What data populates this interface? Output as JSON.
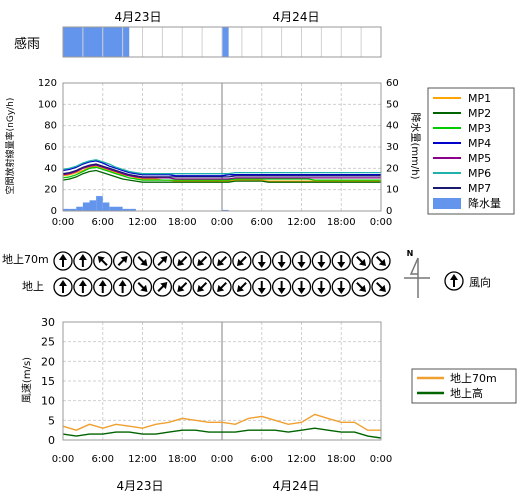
{
  "chart_data": [
    {
      "type": "timeline",
      "name_label": "感雨",
      "date_labels": [
        "4月23日",
        "4月24日"
      ],
      "rain_periods_hours": [
        [
          0,
          10
        ],
        [
          24,
          25
        ]
      ],
      "x_range_hours": [
        0,
        48
      ],
      "colors": {
        "rain": "#6495ed"
      }
    },
    {
      "type": "line",
      "ylabel_left": "空間放射線量率(nGy/h)",
      "ylabel_right": "降水量(mm/h)",
      "ylim_left": [
        0,
        120
      ],
      "ylim_right": [
        0,
        60
      ],
      "yticks_left": [
        "0",
        "20",
        "40",
        "60",
        "80",
        "100",
        "120"
      ],
      "yticks_right": [
        "0",
        "10",
        "20",
        "30",
        "40",
        "50",
        "60"
      ],
      "xticks": [
        "0:00",
        "6:00",
        "12:00",
        "18:00",
        "0:00",
        "6:00",
        "12:00",
        "18:00",
        "0:00"
      ],
      "x_hours": [
        0,
        1,
        2,
        3,
        4,
        5,
        6,
        7,
        8,
        9,
        10,
        11,
        12,
        13,
        14,
        15,
        16,
        17,
        18,
        19,
        20,
        21,
        22,
        23,
        24,
        25,
        26,
        27,
        28,
        29,
        30,
        31,
        32,
        33,
        34,
        35,
        36,
        37,
        38,
        39,
        40,
        41,
        42,
        43,
        44,
        45,
        46,
        47,
        48
      ],
      "series": [
        {
          "name": "MP1",
          "color": "#ffa500",
          "values": [
            33,
            34,
            36,
            38,
            41,
            42,
            40,
            38,
            36,
            34,
            33,
            31,
            30,
            30,
            30,
            29,
            29,
            28,
            28,
            28,
            28,
            28,
            28,
            28,
            28,
            28,
            29,
            29,
            29,
            29,
            29,
            28,
            28,
            28,
            28,
            28,
            28,
            28,
            28,
            28,
            28,
            28,
            28,
            28,
            28,
            28,
            28,
            28,
            28
          ]
        },
        {
          "name": "MP2",
          "color": "#006400",
          "values": [
            29,
            30,
            32,
            35,
            37,
            38,
            36,
            34,
            32,
            30,
            29,
            28,
            27,
            27,
            27,
            27,
            27,
            27,
            27,
            27,
            27,
            27,
            27,
            27,
            27,
            27,
            28,
            28,
            28,
            28,
            28,
            27,
            27,
            27,
            27,
            27,
            27,
            27,
            27,
            27,
            27,
            27,
            27,
            27,
            27,
            27,
            27,
            27,
            27
          ]
        },
        {
          "name": "MP3",
          "color": "#00cc00",
          "values": [
            31,
            32,
            34,
            37,
            40,
            41,
            39,
            37,
            35,
            33,
            31,
            30,
            29,
            29,
            29,
            29,
            29,
            29,
            29,
            29,
            29,
            29,
            29,
            29,
            29,
            29,
            30,
            30,
            30,
            30,
            30,
            30,
            30,
            30,
            30,
            30,
            30,
            30,
            29,
            29,
            29,
            29,
            29,
            29,
            29,
            29,
            29,
            29,
            29
          ]
        },
        {
          "name": "MP4",
          "color": "#0000cd",
          "values": [
            38,
            39,
            41,
            44,
            46,
            47,
            45,
            42,
            40,
            38,
            36,
            35,
            34,
            34,
            34,
            34,
            34,
            33,
            33,
            33,
            33,
            33,
            33,
            33,
            33,
            34,
            34,
            34,
            34,
            34,
            34,
            34,
            34,
            34,
            34,
            34,
            34,
            34,
            34,
            34,
            34,
            34,
            34,
            34,
            34,
            34,
            34,
            34,
            34
          ]
        },
        {
          "name": "MP5",
          "color": "#8b008b",
          "values": [
            34,
            35,
            37,
            40,
            42,
            43,
            41,
            39,
            37,
            35,
            33,
            32,
            31,
            31,
            31,
            31,
            31,
            30,
            30,
            30,
            30,
            30,
            30,
            30,
            30,
            30,
            31,
            31,
            31,
            31,
            31,
            31,
            31,
            31,
            31,
            31,
            31,
            31,
            31,
            31,
            31,
            31,
            31,
            31,
            31,
            31,
            31,
            31,
            31
          ]
        },
        {
          "name": "MP6",
          "color": "#20b2aa",
          "values": [
            39,
            40,
            42,
            45,
            47,
            48,
            46,
            44,
            41,
            39,
            37,
            36,
            35,
            35,
            35,
            35,
            35,
            35,
            35,
            35,
            35,
            35,
            35,
            35,
            35,
            35,
            36,
            36,
            36,
            36,
            36,
            36,
            36,
            36,
            36,
            36,
            36,
            36,
            36,
            36,
            36,
            36,
            36,
            36,
            36,
            36,
            36,
            36,
            36
          ]
        },
        {
          "name": "MP7",
          "color": "#191970",
          "values": [
            35,
            36,
            38,
            41,
            43,
            44,
            42,
            40,
            38,
            36,
            34,
            33,
            32,
            32,
            32,
            32,
            32,
            32,
            32,
            32,
            32,
            32,
            32,
            32,
            32,
            32,
            33,
            33,
            33,
            33,
            33,
            33,
            33,
            33,
            33,
            33,
            33,
            33,
            33,
            33,
            33,
            33,
            33,
            33,
            33,
            33,
            33,
            33,
            33
          ]
        }
      ],
      "precip": {
        "name": "降水量",
        "color": "#6495ed",
        "x_hours": [
          0,
          1,
          2,
          3,
          4,
          5,
          6,
          7,
          8,
          9,
          10,
          24
        ],
        "values": [
          1,
          1,
          2,
          4,
          5,
          7,
          4,
          2,
          2,
          1,
          1,
          0.5
        ]
      }
    },
    {
      "type": "wind_direction",
      "row_labels": [
        "地上70m",
        "地上"
      ],
      "legend_label": "風向",
      "north_label": "N",
      "x_hours": [
        0,
        3,
        6,
        9,
        12,
        15,
        18,
        21,
        24,
        27,
        30,
        33,
        36,
        39,
        42,
        45,
        48
      ],
      "upper_arrow_deg": [
        270,
        270,
        225,
        315,
        45,
        315,
        135,
        135,
        135,
        135,
        90,
        90,
        90,
        90,
        90,
        45,
        45
      ],
      "lower_arrow_deg": [
        270,
        270,
        270,
        270,
        45,
        315,
        135,
        135,
        135,
        135,
        90,
        90,
        90,
        90,
        90,
        45,
        45
      ]
    },
    {
      "type": "line",
      "ylabel": "風速(m/s)",
      "ylim": [
        0,
        30
      ],
      "yticks": [
        "0",
        "5",
        "10",
        "15",
        "20",
        "25",
        "30"
      ],
      "xticks": [
        "0:00",
        "6:00",
        "12:00",
        "18:00",
        "0:00",
        "6:00",
        "12:00",
        "18:00",
        "0:00"
      ],
      "date_labels": [
        "4月23日",
        "4月24日"
      ],
      "x_hours": [
        0,
        2,
        4,
        6,
        8,
        10,
        12,
        14,
        16,
        18,
        20,
        22,
        24,
        26,
        28,
        30,
        32,
        34,
        36,
        38,
        40,
        42,
        44,
        46,
        48
      ],
      "series": [
        {
          "name": "地上70m",
          "color": "#f0a030",
          "values": [
            3.5,
            2.5,
            4.0,
            3.0,
            4.0,
            3.5,
            3.0,
            4.0,
            4.5,
            5.5,
            5.0,
            4.5,
            4.5,
            4.0,
            5.5,
            6.0,
            5.0,
            4.0,
            4.5,
            6.5,
            5.5,
            4.5,
            4.5,
            2.5,
            2.5
          ]
        },
        {
          "name": "地上高",
          "color": "#006400",
          "values": [
            1.5,
            1.0,
            1.5,
            1.5,
            2.0,
            2.0,
            1.5,
            1.5,
            2.0,
            2.5,
            2.5,
            2.0,
            2.0,
            2.0,
            2.5,
            2.5,
            2.5,
            2.0,
            2.5,
            3.0,
            2.5,
            2.0,
            2.0,
            1.0,
            0.5
          ]
        }
      ]
    }
  ]
}
